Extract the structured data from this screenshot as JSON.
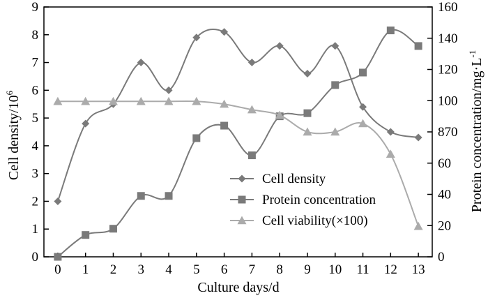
{
  "chart_data": {
    "type": "line",
    "title": "",
    "xlabel": "Culture days/d",
    "ylabel_left": "Cell density/10",
    "ylabel_left_sup": "6",
    "ylabel_right": "Protein concentration/mg·L",
    "ylabel_right_sup": "-1",
    "x": [
      0,
      1,
      2,
      3,
      4,
      5,
      6,
      7,
      8,
      9,
      10,
      11,
      12,
      13
    ],
    "xlim": [
      -0.5,
      13.5
    ],
    "ylim_left": [
      0,
      9
    ],
    "ylim_right": [
      0,
      160
    ],
    "x_ticks": [
      "0",
      "1",
      "2",
      "3",
      "4",
      "5",
      "6",
      "7",
      "8",
      "9",
      "10",
      "11",
      "12",
      "13"
    ],
    "y_left_ticks": [
      "0",
      "1",
      "2",
      "3",
      "4",
      "5",
      "6",
      "7",
      "8",
      "9"
    ],
    "y_right_ticks": [
      "0",
      "20",
      "40",
      "60",
      "80",
      "100",
      "120",
      "140",
      "160"
    ],
    "y_right_tick_overrides": {
      "80": "870"
    },
    "legend_position": "center-right",
    "series": [
      {
        "name": "Cell density",
        "axis": "left",
        "marker": "diamond",
        "color": "#7a7a7a",
        "values": [
          2.0,
          4.8,
          5.5,
          7.0,
          6.0,
          7.9,
          8.1,
          7.0,
          7.6,
          6.6,
          7.6,
          5.4,
          4.5,
          4.3
        ]
      },
      {
        "name": "Protein concentration",
        "axis": "right",
        "marker": "square",
        "color": "#7a7a7a",
        "values": [
          0,
          14,
          18,
          39,
          39,
          76,
          84,
          65,
          90,
          92,
          110,
          118,
          145,
          135
        ]
      },
      {
        "name": "Cell viability(×100)",
        "axis": "left",
        "marker": "triangle",
        "color": "#ababab",
        "values": [
          5.6,
          5.6,
          5.6,
          5.6,
          5.6,
          5.6,
          5.5,
          5.3,
          5.1,
          4.5,
          4.5,
          4.8,
          3.7,
          1.1
        ]
      }
    ]
  }
}
